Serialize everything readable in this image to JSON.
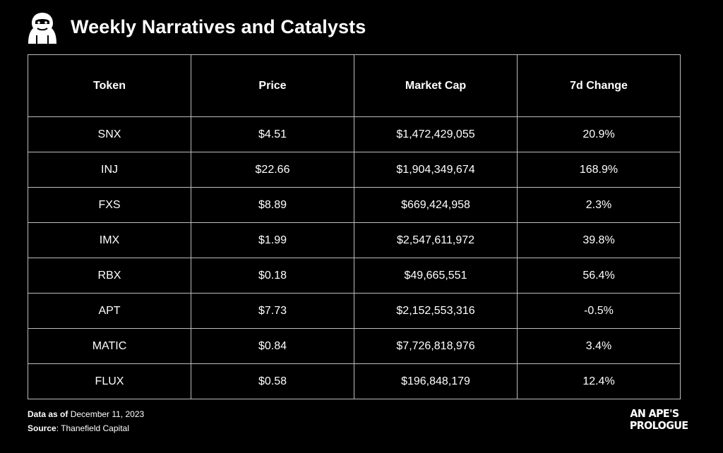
{
  "header": {
    "logo_icon": "ape-head-icon",
    "title": "Weekly Narratives and Catalysts"
  },
  "table": {
    "columns": [
      "Token",
      "Price",
      "Market Cap",
      "7d Change"
    ],
    "rows": [
      [
        "SNX",
        "$4.51",
        "$1,472,429,055",
        "20.9%"
      ],
      [
        "INJ",
        "$22.66",
        "$1,904,349,674",
        "168.9%"
      ],
      [
        "FXS",
        "$8.89",
        "$669,424,958",
        "2.3%"
      ],
      [
        "IMX",
        "$1.99",
        "$2,547,611,972",
        "39.8%"
      ],
      [
        "RBX",
        "$0.18",
        "$49,665,551",
        "56.4%"
      ],
      [
        "APT",
        "$7.73",
        "$2,152,553,316",
        "-0.5%"
      ],
      [
        "MATIC",
        "$0.84",
        "$7,726,818,976",
        "3.4%"
      ],
      [
        "FLUX",
        "$0.58",
        "$196,848,179",
        "12.4%"
      ]
    ]
  },
  "footer": {
    "date_label": "Data as of",
    "date_value": " December 11, 2023",
    "source_label": "Source",
    "source_value": ": Thanefield Capital"
  },
  "brand": {
    "line1": "AN APE'S",
    "line2": "PROLOGUE"
  },
  "colors": {
    "background": "#000000",
    "text": "#ffffff",
    "grid": "#bdbdbd"
  }
}
